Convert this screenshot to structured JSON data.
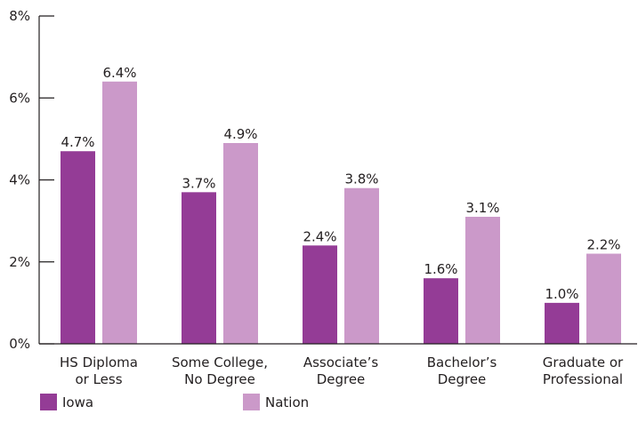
{
  "chart_data": {
    "type": "bar",
    "categories": [
      [
        "HS Diploma",
        "or Less"
      ],
      [
        "Some College,",
        "No Degree"
      ],
      [
        "Associate’s",
        "Degree"
      ],
      [
        "Bachelor’s",
        "Degree"
      ],
      [
        "Graduate or",
        "Professional"
      ]
    ],
    "series": [
      {
        "name": "Iowa",
        "color": "#943c96",
        "values": [
          4.7,
          3.7,
          2.4,
          1.6,
          1.0
        ]
      },
      {
        "name": "Nation",
        "color": "#cb99c9",
        "values": [
          6.4,
          4.9,
          3.8,
          3.1,
          2.2
        ]
      }
    ],
    "ylim": [
      0,
      8
    ],
    "yticks": [
      0,
      2,
      4,
      6,
      8
    ],
    "y_tick_suffix": "%",
    "data_label_suffix": "%",
    "legend_position": "bottom-left",
    "grid": false,
    "title": "",
    "xlabel": "",
    "ylabel": ""
  }
}
